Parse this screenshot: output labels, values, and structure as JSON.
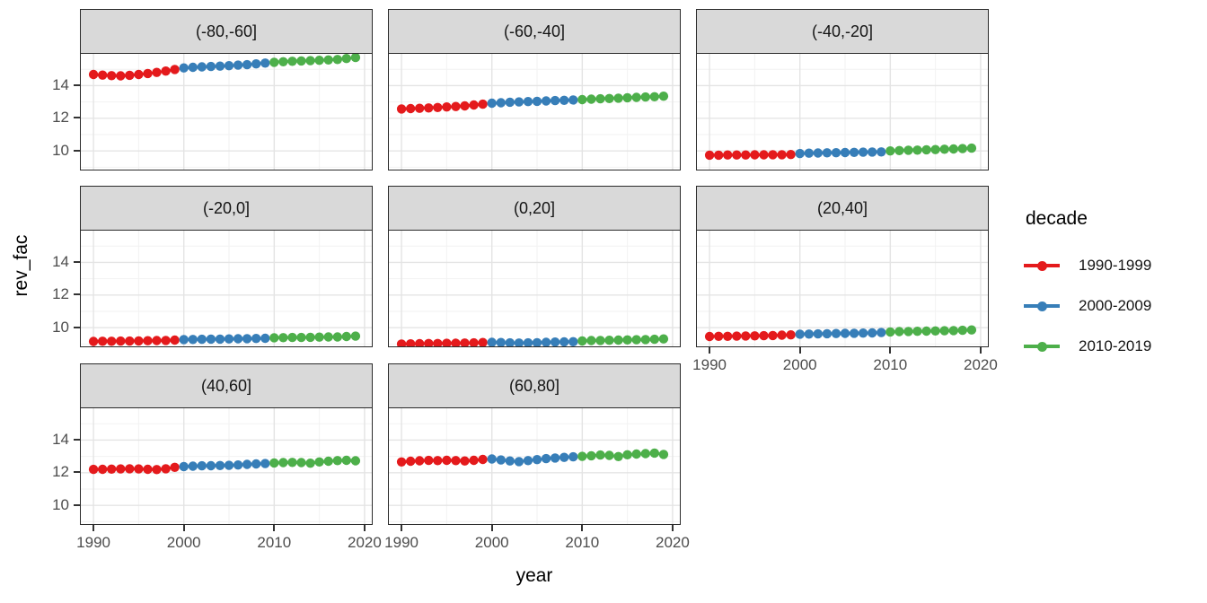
{
  "chart_data": {
    "type": "scatter",
    "title": "",
    "xlabel": "year",
    "ylabel": "rev_fac",
    "grid": true,
    "legend": {
      "title": "decade",
      "position": "right"
    },
    "xlim": [
      1988.5,
      2020.9
    ],
    "ylim": [
      8.8,
      16.0
    ],
    "x_ticks": [
      1990,
      2000,
      2010,
      2020
    ],
    "x_minor_ticks": [
      1995,
      2005,
      2015
    ],
    "y_ticks": [
      10,
      12,
      14
    ],
    "y_minor_ticks": [
      9,
      11,
      13,
      15
    ],
    "years": [
      1990,
      1991,
      1992,
      1993,
      1994,
      1995,
      1996,
      1997,
      1998,
      1999,
      2000,
      2001,
      2002,
      2003,
      2004,
      2005,
      2006,
      2007,
      2008,
      2009,
      2010,
      2011,
      2012,
      2013,
      2014,
      2015,
      2016,
      2017,
      2018,
      2019
    ],
    "decades": [
      {
        "label": "1990-1999",
        "color": "#E41A1C",
        "start": 1990,
        "end": 1999
      },
      {
        "label": "2000-2009",
        "color": "#377EB8",
        "start": 2000,
        "end": 2009
      },
      {
        "label": "2010-2019",
        "color": "#4DAF4A",
        "start": 2010,
        "end": 2019
      }
    ],
    "facets": [
      {
        "label": "(-80,-60]",
        "values": [
          14.68,
          14.64,
          14.61,
          14.6,
          14.63,
          14.68,
          14.74,
          14.81,
          14.89,
          14.99,
          15.08,
          15.12,
          15.15,
          15.17,
          15.19,
          15.22,
          15.25,
          15.28,
          15.33,
          15.38,
          15.43,
          15.46,
          15.49,
          15.51,
          15.53,
          15.55,
          15.57,
          15.6,
          15.66,
          15.72
        ]
      },
      {
        "label": "(-60,-40]",
        "values": [
          12.57,
          12.59,
          12.61,
          12.63,
          12.66,
          12.69,
          12.72,
          12.76,
          12.81,
          12.86,
          12.92,
          12.95,
          12.98,
          13.0,
          13.02,
          13.04,
          13.06,
          13.08,
          13.1,
          13.12,
          13.14,
          13.17,
          13.19,
          13.21,
          13.23,
          13.26,
          13.28,
          13.3,
          13.32,
          13.35
        ]
      },
      {
        "label": "(-40,-20]",
        "values": [
          9.74,
          9.74,
          9.75,
          9.75,
          9.75,
          9.76,
          9.76,
          9.77,
          9.77,
          9.78,
          9.84,
          9.86,
          9.87,
          9.88,
          9.89,
          9.9,
          9.91,
          9.92,
          9.93,
          9.94,
          10.0,
          10.02,
          10.04,
          10.05,
          10.07,
          10.08,
          10.1,
          10.12,
          10.14,
          10.17
        ]
      },
      {
        "label": "(-20,0]",
        "values": [
          9.16,
          9.17,
          9.17,
          9.18,
          9.18,
          9.19,
          9.2,
          9.21,
          9.22,
          9.24,
          9.27,
          9.28,
          9.29,
          9.3,
          9.3,
          9.31,
          9.32,
          9.33,
          9.34,
          9.35,
          9.38,
          9.39,
          9.4,
          9.4,
          9.41,
          9.42,
          9.43,
          9.43,
          9.46,
          9.48
        ]
      },
      {
        "label": "(0,20]",
        "values": [
          9.0,
          9.01,
          9.02,
          9.03,
          9.03,
          9.04,
          9.05,
          9.06,
          9.07,
          9.09,
          9.1,
          9.09,
          9.07,
          9.06,
          9.07,
          9.08,
          9.1,
          9.12,
          9.13,
          9.14,
          9.19,
          9.21,
          9.22,
          9.23,
          9.24,
          9.25,
          9.26,
          9.27,
          9.29,
          9.31
        ]
      },
      {
        "label": "(20,40]",
        "values": [
          9.46,
          9.47,
          9.47,
          9.48,
          9.49,
          9.5,
          9.51,
          9.52,
          9.54,
          9.56,
          9.6,
          9.61,
          9.62,
          9.63,
          9.64,
          9.65,
          9.66,
          9.67,
          9.68,
          9.7,
          9.74,
          9.76,
          9.77,
          9.78,
          9.79,
          9.8,
          9.81,
          9.82,
          9.84,
          9.86
        ]
      },
      {
        "label": "(40,60]",
        "values": [
          12.2,
          12.21,
          12.22,
          12.23,
          12.24,
          12.23,
          12.21,
          12.19,
          12.24,
          12.33,
          12.38,
          12.4,
          12.42,
          12.43,
          12.44,
          12.45,
          12.47,
          12.51,
          12.54,
          12.56,
          12.6,
          12.62,
          12.63,
          12.62,
          12.58,
          12.66,
          12.7,
          12.74,
          12.76,
          12.73
        ]
      },
      {
        "label": "(60,80]",
        "values": [
          12.66,
          12.7,
          12.73,
          12.75,
          12.74,
          12.76,
          12.74,
          12.72,
          12.76,
          12.81,
          12.84,
          12.78,
          12.72,
          12.68,
          12.74,
          12.8,
          12.86,
          12.9,
          12.94,
          12.97,
          13.0,
          13.04,
          13.08,
          13.06,
          12.99,
          13.1,
          13.14,
          13.17,
          13.2,
          13.12
        ]
      }
    ]
  }
}
